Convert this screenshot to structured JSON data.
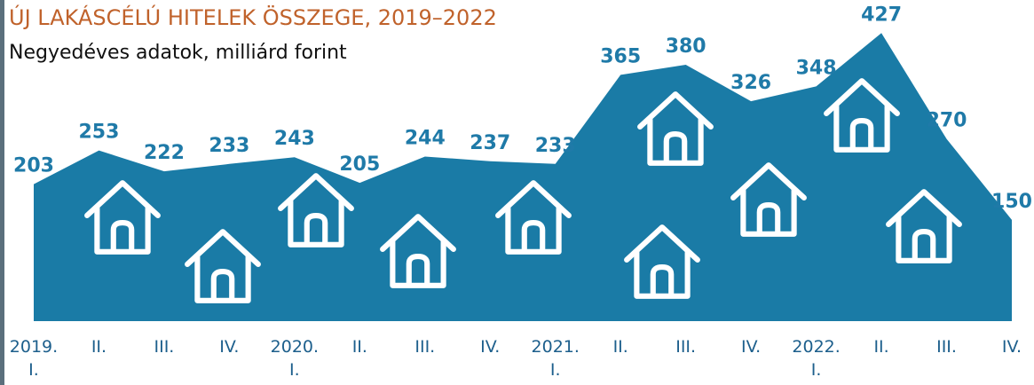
{
  "chart_data": {
    "type": "area",
    "title": "ÚJ LAKÁSCÉLÚ HITELEK ÖSSZEGE, 2019–2022",
    "subtitle": "Negyedéves adatok, milliárd forint",
    "categories": [
      "2019. I.",
      "II.",
      "III.",
      "IV.",
      "2020. I.",
      "II.",
      "III.",
      "IV.",
      "2021. I.",
      "II.",
      "III.",
      "IV.",
      "2022. I.",
      "II.",
      "III.",
      "IV."
    ],
    "values": [
      203,
      253,
      222,
      233,
      243,
      205,
      244,
      237,
      233,
      365,
      380,
      326,
      348,
      427,
      270,
      150
    ],
    "color": "#1a7ba6",
    "ylim": [
      0,
      430
    ]
  }
}
